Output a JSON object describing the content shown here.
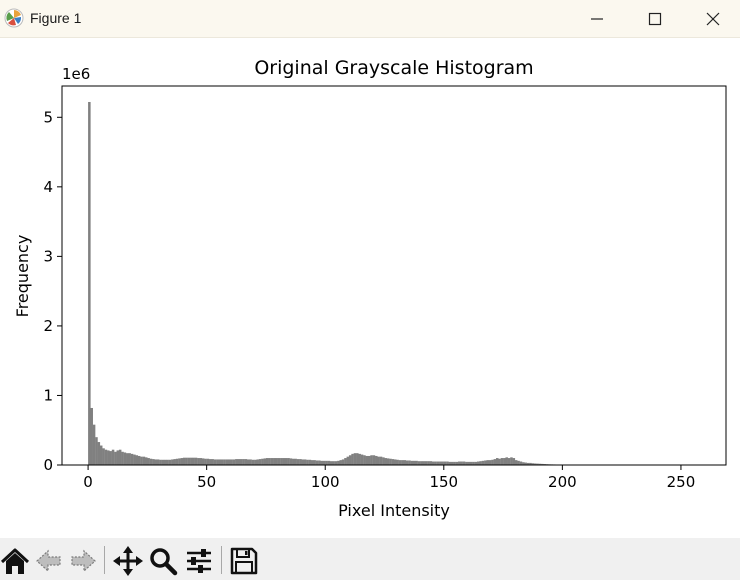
{
  "window": {
    "title": "Figure 1",
    "icons": [
      "matplotlib-app-icon",
      "minimize-icon",
      "maximize-icon",
      "close-icon"
    ]
  },
  "toolbar": {
    "buttons": [
      "home",
      "back",
      "forward",
      "pan",
      "zoom",
      "configure-subplots",
      "save"
    ]
  },
  "chart_data": {
    "type": "bar",
    "title": "Original Grayscale Histogram",
    "xlabel": "Pixel Intensity",
    "ylabel": "Frequency",
    "y_offset_label": "1e6",
    "xlim": [
      -11,
      269
    ],
    "ylim": [
      0,
      5.45
    ],
    "xticks": [
      0,
      50,
      100,
      150,
      200,
      250
    ],
    "yticks": [
      0,
      1,
      2,
      3,
      4,
      5
    ],
    "grid": false,
    "bar_color": "#808080",
    "bin_width": 1,
    "bins_start": 0,
    "values": [
      5.22,
      0.82,
      0.58,
      0.4,
      0.33,
      0.28,
      0.24,
      0.22,
      0.21,
      0.2,
      0.22,
      0.19,
      0.21,
      0.22,
      0.19,
      0.18,
      0.17,
      0.17,
      0.16,
      0.15,
      0.14,
      0.13,
      0.12,
      0.12,
      0.11,
      0.1,
      0.09,
      0.085,
      0.08,
      0.08,
      0.075,
      0.075,
      0.075,
      0.075,
      0.075,
      0.08,
      0.085,
      0.09,
      0.095,
      0.1,
      0.105,
      0.105,
      0.105,
      0.105,
      0.105,
      0.105,
      0.1,
      0.1,
      0.095,
      0.09,
      0.09,
      0.085,
      0.085,
      0.08,
      0.08,
      0.08,
      0.08,
      0.08,
      0.08,
      0.08,
      0.08,
      0.08,
      0.085,
      0.085,
      0.085,
      0.085,
      0.085,
      0.08,
      0.08,
      0.075,
      0.075,
      0.08,
      0.085,
      0.09,
      0.095,
      0.1,
      0.1,
      0.1,
      0.1,
      0.1,
      0.1,
      0.1,
      0.1,
      0.1,
      0.1,
      0.095,
      0.09,
      0.09,
      0.085,
      0.085,
      0.08,
      0.08,
      0.075,
      0.075,
      0.07,
      0.07,
      0.065,
      0.065,
      0.06,
      0.06,
      0.06,
      0.06,
      0.055,
      0.055,
      0.055,
      0.06,
      0.07,
      0.08,
      0.1,
      0.12,
      0.14,
      0.16,
      0.17,
      0.17,
      0.16,
      0.15,
      0.14,
      0.13,
      0.13,
      0.14,
      0.14,
      0.13,
      0.12,
      0.12,
      0.11,
      0.1,
      0.095,
      0.09,
      0.085,
      0.08,
      0.075,
      0.07,
      0.07,
      0.07,
      0.065,
      0.065,
      0.06,
      0.06,
      0.06,
      0.055,
      0.055,
      0.055,
      0.055,
      0.055,
      0.055,
      0.05,
      0.05,
      0.05,
      0.05,
      0.05,
      0.05,
      0.05,
      0.045,
      0.045,
      0.045,
      0.045,
      0.05,
      0.05,
      0.05,
      0.045,
      0.045,
      0.045,
      0.045,
      0.045,
      0.05,
      0.055,
      0.06,
      0.065,
      0.07,
      0.07,
      0.075,
      0.085,
      0.1,
      0.09,
      0.1,
      0.1,
      0.11,
      0.1,
      0.11,
      0.1,
      0.07,
      0.06,
      0.05,
      0.04,
      0.035,
      0.03,
      0.03,
      0.025,
      0.022,
      0.02,
      0.018,
      0.016,
      0.014,
      0.012,
      0.01,
      0.009,
      0.008,
      0.007,
      0.006,
      0.006,
      0.005,
      0.005,
      0.004,
      0.004,
      0.004,
      0.003,
      0.003,
      0.003,
      0.003,
      0.002,
      0.002,
      0.002,
      0.002,
      0.002,
      0.002,
      0.002,
      0.001,
      0.001,
      0.001,
      0.001,
      0.001,
      0.001,
      0.001,
      0.001,
      0.001,
      0.001,
      0.001,
      0.001,
      0.001,
      0.001,
      0.001,
      0.001,
      0.001,
      0.001,
      0.001,
      0.001,
      0.001,
      0.001,
      0.001,
      0.001,
      0.001,
      0.001,
      0.001,
      0.001,
      0.001,
      0.001,
      0.001,
      0.001,
      0.001,
      0.001,
      0.001,
      0.001,
      0.001,
      0.001,
      0.001,
      0.001,
      0.001,
      0.001,
      0.001,
      0.001,
      0.001
    ]
  }
}
